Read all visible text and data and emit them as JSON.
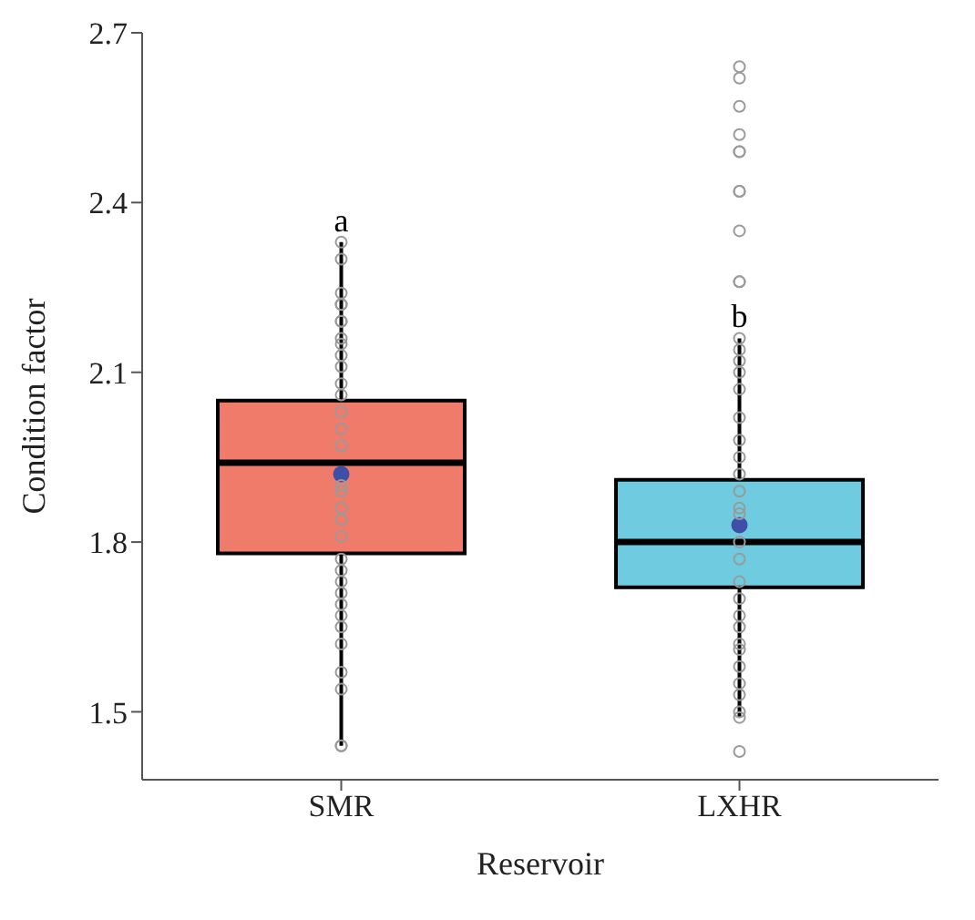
{
  "chart_data": {
    "type": "box",
    "xlabel": "Reservoir",
    "ylabel": "Condition factor",
    "categories": [
      "SMR",
      "LXHR"
    ],
    "boxes": [
      {
        "low": 1.44,
        "q1": 1.78,
        "median": 1.94,
        "q3": 2.05,
        "high": 2.33,
        "mean": 1.92
      },
      {
        "low": 1.49,
        "q1": 1.72,
        "median": 1.8,
        "q3": 1.91,
        "high": 2.16,
        "mean": 1.83
      }
    ],
    "colors": [
      "#f07b6a",
      "#6ecbe0"
    ],
    "series": [
      {
        "type": "scatter",
        "color": "#9a9a9a",
        "x": [
          "SMR",
          "SMR",
          "SMR",
          "SMR",
          "SMR",
          "SMR",
          "SMR",
          "SMR",
          "SMR",
          "SMR",
          "SMR",
          "SMR",
          "SMR",
          "SMR",
          "SMR",
          "SMR",
          "SMR",
          "SMR",
          "SMR",
          "SMR",
          "SMR",
          "SMR",
          "SMR",
          "SMR",
          "SMR",
          "SMR",
          "SMR",
          "SMR",
          "SMR",
          "SMR",
          "SMR",
          "SMR",
          "SMR",
          "LXHR",
          "LXHR",
          "LXHR",
          "LXHR",
          "LXHR",
          "LXHR",
          "LXHR",
          "LXHR",
          "LXHR",
          "LXHR",
          "LXHR",
          "LXHR",
          "LXHR",
          "LXHR",
          "LXHR",
          "LXHR",
          "LXHR",
          "LXHR",
          "LXHR",
          "LXHR",
          "LXHR",
          "LXHR",
          "LXHR",
          "LXHR",
          "LXHR",
          "LXHR",
          "LXHR",
          "LXHR",
          "LXHR",
          "LXHR",
          "LXHR",
          "LXHR",
          "LXHR",
          "LXHR",
          "LXHR",
          "LXHR",
          "LXHR"
        ],
        "values": [
          2.33,
          2.3,
          2.24,
          2.22,
          2.22,
          2.19,
          2.19,
          2.16,
          2.15,
          2.13,
          2.11,
          2.08,
          2.06,
          2.03,
          2.0,
          1.97,
          1.9,
          1.89,
          1.86,
          1.84,
          1.81,
          1.77,
          1.75,
          1.73,
          1.71,
          1.69,
          1.67,
          1.65,
          1.62,
          1.57,
          1.54,
          1.44,
          1.44,
          2.64,
          2.62,
          2.57,
          2.52,
          2.49,
          2.49,
          2.42,
          2.42,
          2.35,
          2.26,
          2.26,
          2.16,
          2.14,
          2.12,
          2.1,
          2.07,
          2.02,
          1.98,
          1.95,
          1.92,
          1.89,
          1.86,
          1.85,
          1.8,
          1.77,
          1.73,
          1.7,
          1.67,
          1.65,
          1.62,
          1.61,
          1.58,
          1.55,
          1.53,
          1.5,
          1.49,
          1.43
        ]
      }
    ],
    "marker": "circle",
    "annotations": [
      {
        "text": "a",
        "x": "SMR",
        "y": 2.33
      },
      {
        "text": "b",
        "x": "LXHR",
        "y": 2.16
      }
    ],
    "ylim": [
      1.38,
      2.7
    ],
    "yticks": [
      1.5,
      1.8,
      2.1,
      2.4,
      2.7
    ],
    "grid": false,
    "legend": false
  }
}
